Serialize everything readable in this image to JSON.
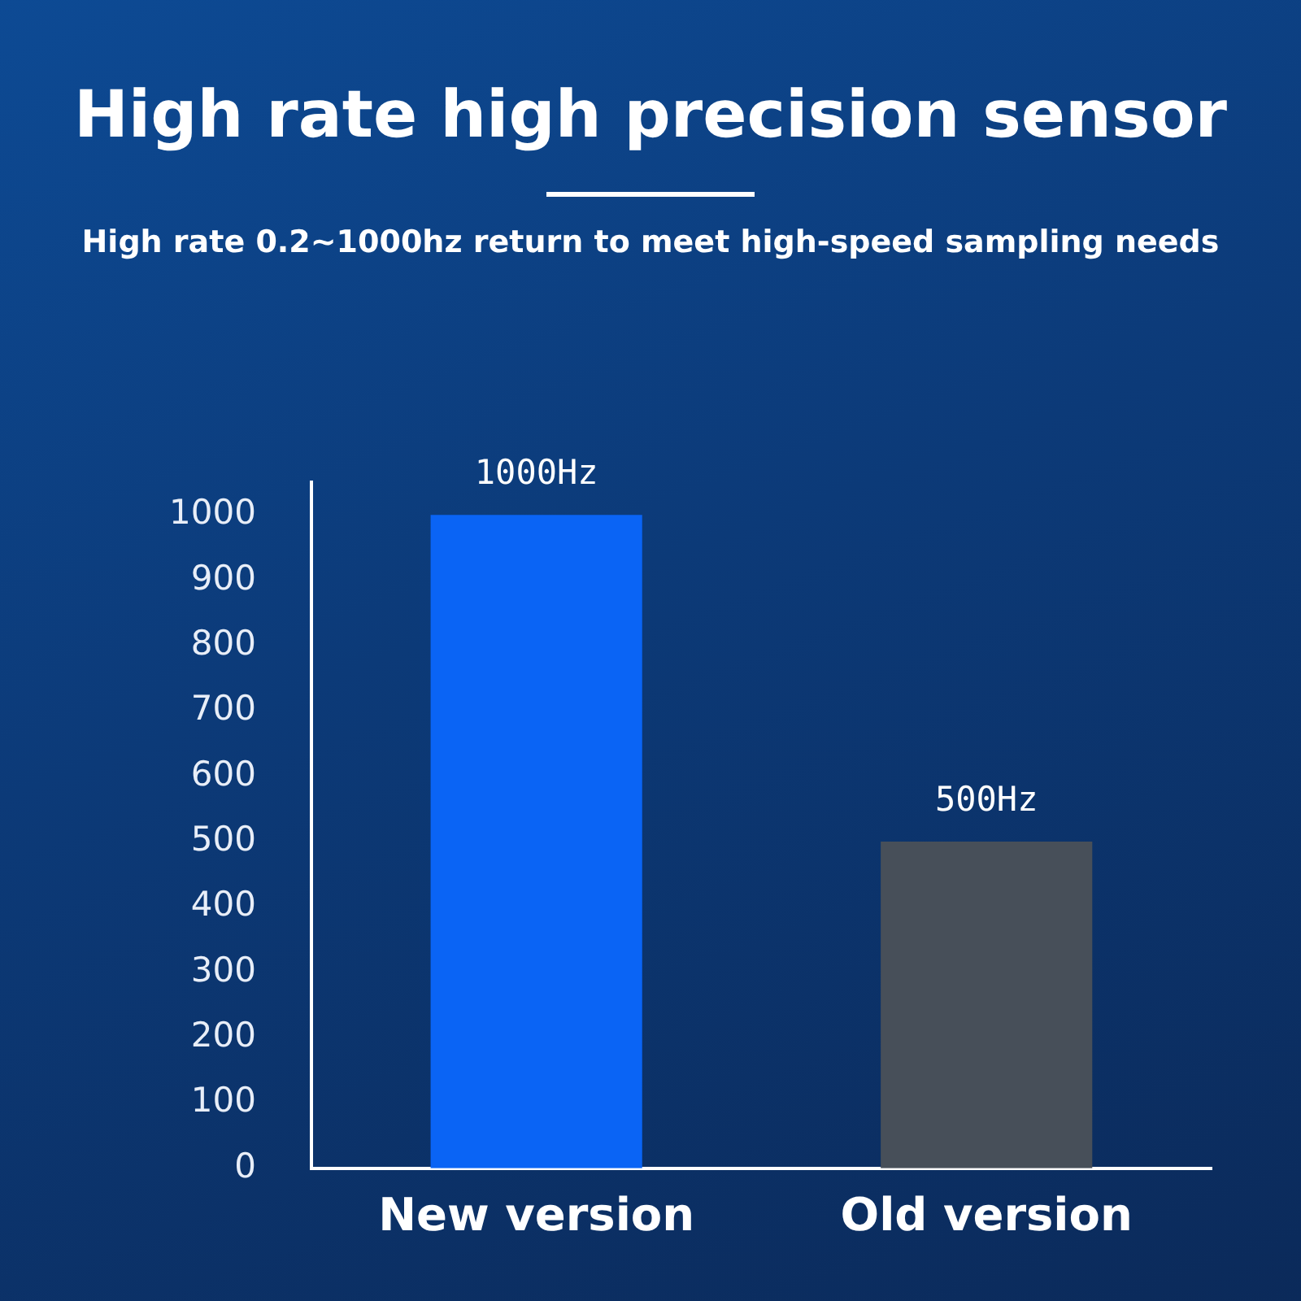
{
  "chart_data": {
    "type": "bar",
    "title": "High rate high precision sensor",
    "subtitle": "High rate 0.2~1000hz return to meet high-speed sampling needs",
    "categories": [
      "New version",
      "Old version"
    ],
    "values": [
      1000,
      500
    ],
    "colors": [
      "#0a64f5",
      "#474f59"
    ],
    "value_labels": [
      "1000Hz",
      "500Hz"
    ],
    "ylim": [
      0,
      1050
    ],
    "yticks": [
      0,
      100,
      200,
      300,
      400,
      500,
      600,
      700,
      800,
      900,
      1000
    ],
    "grid": false,
    "legend": false
  }
}
